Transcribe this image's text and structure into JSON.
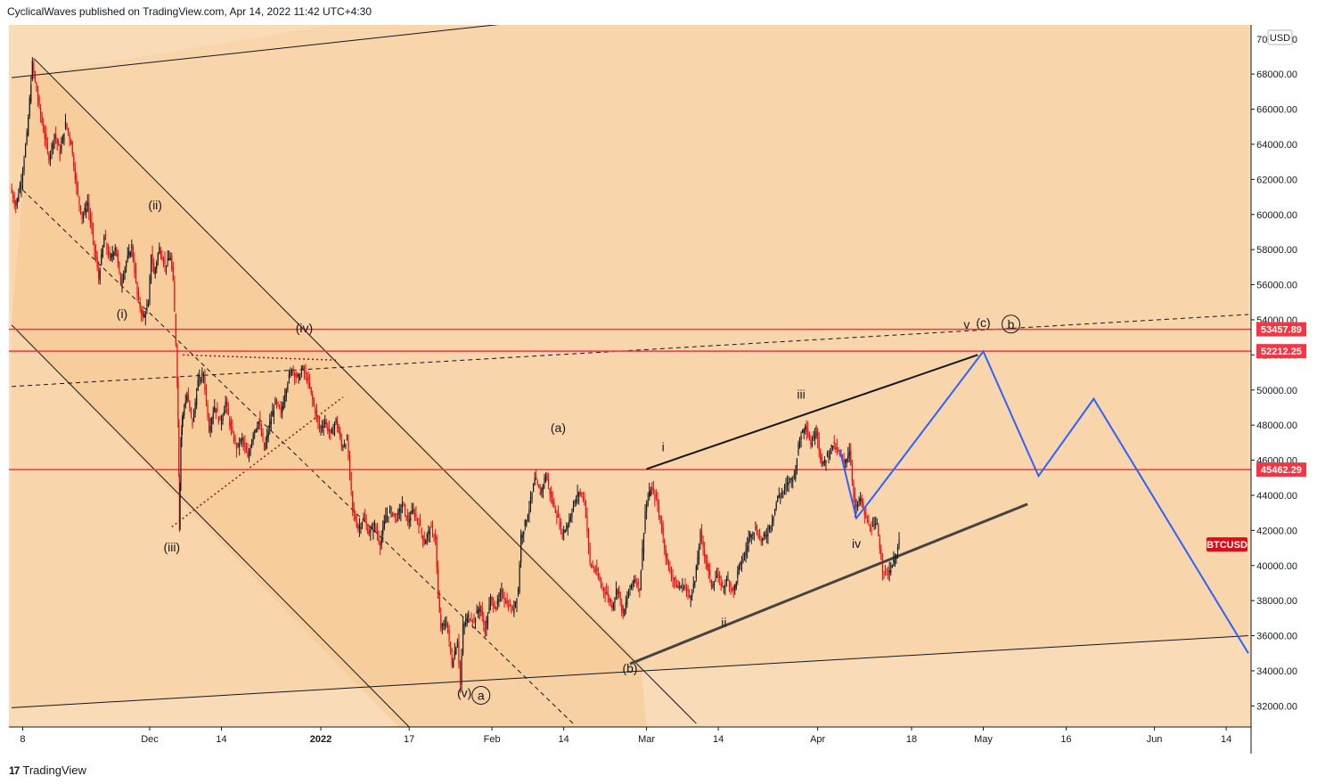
{
  "header": {
    "text": "CyclicalWaves published on TradingView.com, Apr 14, 2022 11:42 UTC+4:30"
  },
  "footer": {
    "logo_glyph": "17",
    "brand": "TradingView"
  },
  "colors": {
    "background": "#f9dbb8",
    "channel_fill": "#f8cf9f",
    "candle_up": "#131722",
    "candle_down": "#e50914",
    "level_line": "#f23645",
    "projection": "#2962ff",
    "axis_bg": "#ffffff"
  },
  "chart_data": {
    "type": "candlestick",
    "symbol": "BTCUSD",
    "currency": "USD",
    "y_ticks": [
      32000,
      34000,
      36000,
      38000,
      40000,
      42000,
      44000,
      46000,
      48000,
      50000,
      52000,
      54000,
      56000,
      58000,
      60000,
      62000,
      64000,
      66000,
      68000
    ],
    "y_tick_labels": [
      "32000.00",
      "34000.00",
      "36000.00",
      "38000.00",
      "40000.00",
      "42000.00",
      "44000.00",
      "46000.00",
      "48000.00",
      "50000.00",
      "52000.00",
      "54000.00",
      "56000.00",
      "58000.00",
      "60000.00",
      "62000.00",
      "64000.00",
      "66000.00",
      "68000.00"
    ],
    "y_top_label": "70000.00",
    "ylim": [
      30800,
      70800
    ],
    "x_ticks": [
      {
        "label": "8",
        "day": 0
      },
      {
        "label": "Dec",
        "day": 23
      },
      {
        "label": "14",
        "day": 36
      },
      {
        "label": "2022",
        "day": 54
      },
      {
        "label": "17",
        "day": 70
      },
      {
        "label": "Feb",
        "day": 85
      },
      {
        "label": "14",
        "day": 98
      },
      {
        "label": "Mar",
        "day": 113
      },
      {
        "label": "14",
        "day": 126
      },
      {
        "label": "Apr",
        "day": 144
      },
      {
        "label": "18",
        "day": 161
      },
      {
        "label": "May",
        "day": 174
      },
      {
        "label": "16",
        "day": 189
      },
      {
        "label": "Jun",
        "day": 205
      },
      {
        "label": "14",
        "day": 218
      }
    ],
    "xlim": [
      -2.5,
      222.5
    ],
    "price_path": [
      [
        -2,
        61500
      ],
      [
        -1,
        60500
      ],
      [
        0,
        62000
      ],
      [
        1,
        64500
      ],
      [
        2,
        68600
      ],
      [
        3,
        66500
      ],
      [
        4,
        64800
      ],
      [
        5,
        63200
      ],
      [
        6,
        64600
      ],
      [
        7,
        63500
      ],
      [
        8,
        65200
      ],
      [
        9,
        64100
      ],
      [
        10,
        61500
      ],
      [
        11,
        59800
      ],
      [
        12,
        60700
      ],
      [
        13,
        58500
      ],
      [
        14,
        56400
      ],
      [
        15,
        58700
      ],
      [
        16,
        57400
      ],
      [
        17,
        58200
      ],
      [
        18,
        56100
      ],
      [
        19,
        57300
      ],
      [
        20,
        58200
      ],
      [
        21,
        55400
      ],
      [
        22,
        54100
      ],
      [
        23,
        54800
      ],
      [
        23.5,
        57800
      ],
      [
        24,
        56600
      ],
      [
        25,
        58100
      ],
      [
        26,
        57100
      ],
      [
        27,
        57600
      ],
      [
        27.5,
        56100
      ],
      [
        28,
        52700
      ],
      [
        28.3,
        48300
      ],
      [
        28.5,
        42200
      ],
      [
        28.8,
        47200
      ],
      [
        29,
        48300
      ],
      [
        30,
        49700
      ],
      [
        31,
        48100
      ],
      [
        32,
        50500
      ],
      [
        33,
        50900
      ],
      [
        34,
        47800
      ],
      [
        35,
        49100
      ],
      [
        36,
        48100
      ],
      [
        37,
        49300
      ],
      [
        38,
        47700
      ],
      [
        39,
        46700
      ],
      [
        40,
        47200
      ],
      [
        41,
        46100
      ],
      [
        42,
        47600
      ],
      [
        43,
        48200
      ],
      [
        44,
        46600
      ],
      [
        45,
        48100
      ],
      [
        46,
        49300
      ],
      [
        47,
        48700
      ],
      [
        48,
        50200
      ],
      [
        49,
        51300
      ],
      [
        50,
        50600
      ],
      [
        51,
        51200
      ],
      [
        52,
        50400
      ],
      [
        53,
        49100
      ],
      [
        54,
        47800
      ],
      [
        55,
        48200
      ],
      [
        56,
        47400
      ],
      [
        57,
        48300
      ],
      [
        58,
        46800
      ],
      [
        59,
        47100
      ],
      [
        60,
        43200
      ],
      [
        61,
        42100
      ],
      [
        62,
        42700
      ],
      [
        63,
        41800
      ],
      [
        64,
        42300
      ],
      [
        65,
        41200
      ],
      [
        66,
        42800
      ],
      [
        67,
        43100
      ],
      [
        68,
        42700
      ],
      [
        69,
        43500
      ],
      [
        70,
        42500
      ],
      [
        71,
        43100
      ],
      [
        72,
        42400
      ],
      [
        73,
        41300
      ],
      [
        74,
        42100
      ],
      [
        75,
        41600
      ],
      [
        75.5,
        38100
      ],
      [
        76,
        36400
      ],
      [
        77,
        36800
      ],
      [
        78,
        34400
      ],
      [
        79,
        35800
      ],
      [
        79.5,
        33200
      ],
      [
        80,
        36500
      ],
      [
        81,
        37100
      ],
      [
        82,
        36900
      ],
      [
        83,
        37700
      ],
      [
        84,
        36300
      ],
      [
        85,
        38100
      ],
      [
        86,
        37600
      ],
      [
        87,
        38500
      ],
      [
        88,
        37800
      ],
      [
        89,
        37400
      ],
      [
        90,
        38600
      ],
      [
        90.5,
        41700
      ],
      [
        91,
        42100
      ],
      [
        92,
        43300
      ],
      [
        93,
        44900
      ],
      [
        94,
        44100
      ],
      [
        95,
        45200
      ],
      [
        96,
        43800
      ],
      [
        97,
        42900
      ],
      [
        98,
        41800
      ],
      [
        99,
        42400
      ],
      [
        100,
        43400
      ],
      [
        101,
        44200
      ],
      [
        102,
        43800
      ],
      [
        103,
        40100
      ],
      [
        104,
        39700
      ],
      [
        105,
        38900
      ],
      [
        106,
        38400
      ],
      [
        107,
        37700
      ],
      [
        108,
        38800
      ],
      [
        109,
        37100
      ],
      [
        110,
        38500
      ],
      [
        111,
        39300
      ],
      [
        112,
        38700
      ],
      [
        113,
        43100
      ],
      [
        114,
        44400
      ],
      [
        115,
        43800
      ],
      [
        116,
        42100
      ],
      [
        117,
        40100
      ],
      [
        118,
        39300
      ],
      [
        119,
        38700
      ],
      [
        120,
        38900
      ],
      [
        121,
        38200
      ],
      [
        122,
        39100
      ],
      [
        123,
        41800
      ],
      [
        124,
        40300
      ],
      [
        125,
        38900
      ],
      [
        126,
        39400
      ],
      [
        127,
        38800
      ],
      [
        128,
        39200
      ],
      [
        129,
        38500
      ],
      [
        130,
        39900
      ],
      [
        131,
        40600
      ],
      [
        132,
        41800
      ],
      [
        133,
        42100
      ],
      [
        134,
        41400
      ],
      [
        135,
        41800
      ],
      [
        136,
        42600
      ],
      [
        137,
        43900
      ],
      [
        138,
        44200
      ],
      [
        139,
        44800
      ],
      [
        140,
        45100
      ],
      [
        141,
        47300
      ],
      [
        142,
        48100
      ],
      [
        143,
        46900
      ],
      [
        144,
        47800
      ],
      [
        145,
        45600
      ],
      [
        146,
        46300
      ],
      [
        147,
        46900
      ],
      [
        148,
        46400
      ],
      [
        149,
        45800
      ],
      [
        150,
        46600
      ],
      [
        151,
        43200
      ],
      [
        152,
        43800
      ],
      [
        153,
        42600
      ],
      [
        154,
        42100
      ],
      [
        155,
        42300
      ],
      [
        156,
        39800
      ],
      [
        157,
        39600
      ],
      [
        158,
        40200
      ],
      [
        159,
        41300
      ]
    ],
    "levels": [
      {
        "price": 53457.89,
        "label": "53457.89"
      },
      {
        "price": 52212.25,
        "label": "52212.25"
      },
      {
        "price": 45462.29,
        "label": "45462.29"
      }
    ],
    "last_price_label": "BTCUSD",
    "last_price": 41200,
    "projection_path": [
      [
        148,
        46600
      ],
      [
        151,
        42700
      ],
      [
        154,
        43900
      ],
      [
        174,
        52200
      ],
      [
        184,
        45100
      ],
      [
        194,
        49500
      ],
      [
        222,
        35000
      ]
    ],
    "wave_labels": [
      {
        "text": "(ii)",
        "day": 24,
        "price": 60300
      },
      {
        "text": "(i)",
        "day": 18,
        "price": 54100
      },
      {
        "text": "(iv)",
        "day": 51,
        "price": 53300
      },
      {
        "text": "(iii)",
        "day": 27,
        "price": 40800
      },
      {
        "text": "(v)",
        "day": 80,
        "price": 32500
      },
      {
        "text": "a",
        "day": 83,
        "price": 32350
      },
      {
        "text": "(a)",
        "day": 97,
        "price": 47600
      },
      {
        "text": "(b)",
        "day": 110,
        "price": 33900
      },
      {
        "text": "i",
        "day": 116,
        "price": 46500
      },
      {
        "text": "ii",
        "day": 127,
        "price": 36500
      },
      {
        "text": "iii",
        "day": 141,
        "price": 49500
      },
      {
        "text": "iv",
        "day": 151,
        "price": 41000
      },
      {
        "text": "v",
        "day": 171,
        "price": 53500
      },
      {
        "text": "(c)",
        "day": 174,
        "price": 53600
      },
      {
        "text": "b",
        "day": 179,
        "price": 53500
      }
    ]
  }
}
